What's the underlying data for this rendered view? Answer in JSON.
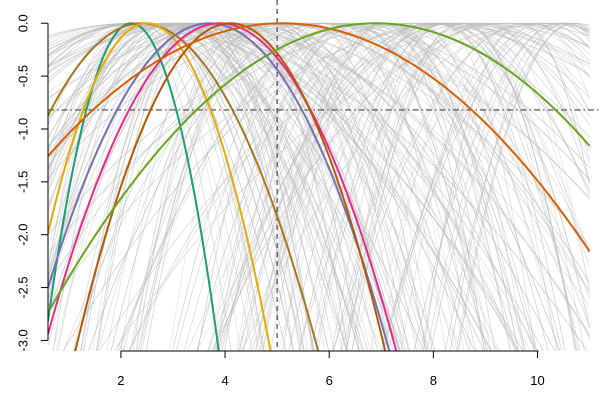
{
  "chart_data": {
    "type": "line",
    "title": "",
    "xlabel": "",
    "ylabel": "",
    "xlim": [
      0.6,
      11.2
    ],
    "ylim": [
      -3.1,
      0.22
    ],
    "x_ticks": [
      2,
      4,
      6,
      8,
      10
    ],
    "x_tick_labels": [
      "2",
      "4",
      "6",
      "8",
      "10"
    ],
    "y_ticks": [
      0.0,
      -0.5,
      -1.0,
      -1.5,
      -2.0,
      -2.5,
      -3.0
    ],
    "y_tick_labels": [
      "0.0",
      "-0.5",
      "-1.0",
      "-1.5",
      "-2.0",
      "-2.5",
      "-3.0"
    ],
    "grid": false,
    "legend": "none",
    "reference_lines": {
      "vertical_x": 5.0,
      "horizontal_y": -0.82
    },
    "background_curve_color": "#bdbdbd",
    "background_curve_count": 180,
    "background_peak_x_range": [
      2.2,
      10.8
    ],
    "highlight_series": [
      {
        "color": "#1b9e77",
        "peak_x": 2.2,
        "curvature": 1.1
      },
      {
        "color": "#a6761d",
        "peak_x": 2.4,
        "curvature": 0.27
      },
      {
        "color": "#e6ab02",
        "peak_x": 2.5,
        "curvature": 0.55
      },
      {
        "color": "#7570b3",
        "peak_x": 3.7,
        "curvature": 0.26
      },
      {
        "color": "#e7298a",
        "peak_x": 3.9,
        "curvature": 0.27
      },
      {
        "color": "#b35806",
        "peak_x": 4.1,
        "curvature": 0.35
      },
      {
        "color": "#d95f02",
        "peak_x": 5.1,
        "curvature": 0.062
      },
      {
        "color": "#66a61e",
        "peak_x": 6.9,
        "curvature": 0.069
      }
    ]
  }
}
